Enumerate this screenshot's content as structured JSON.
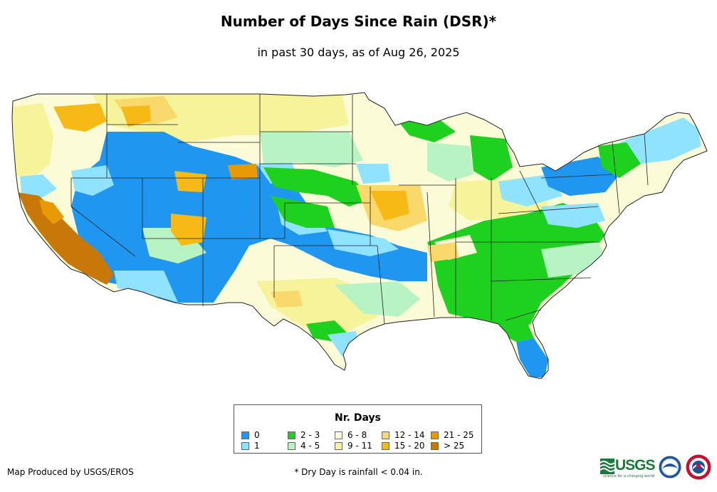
{
  "title": "Number of Days Since Rain (DSR)*",
  "subtitle": "in past 30 days, as of Aug 26, 2025",
  "legend": {
    "title": "Nr. Days",
    "items": [
      {
        "label": "0",
        "color": "#1f96f0"
      },
      {
        "label": "1",
        "color": "#8fe3ff"
      },
      {
        "label": "2 - 3",
        "color": "#1fd11f"
      },
      {
        "label": "4 - 5",
        "color": "#b8f3c3"
      },
      {
        "label": "6 - 8",
        "color": "#fbfbd8"
      },
      {
        "label": "9 - 11",
        "color": "#f7f39a"
      },
      {
        "label": "12 - 14",
        "color": "#f9d96b"
      },
      {
        "label": "15 - 20",
        "color": "#f6b916"
      },
      {
        "label": "21 - 25",
        "color": "#e89a05"
      },
      {
        "label": "> 25",
        "color": "#c87808"
      }
    ]
  },
  "credit": "Map Produced by USGS/EROS",
  "footnote": "* Dry Day is rainfall < 0.04 in.",
  "logos": {
    "usgs": "USGS",
    "usgs_tagline": "science for a changing world",
    "noaa": "noaa-logo",
    "nws": "nws-logo"
  }
}
